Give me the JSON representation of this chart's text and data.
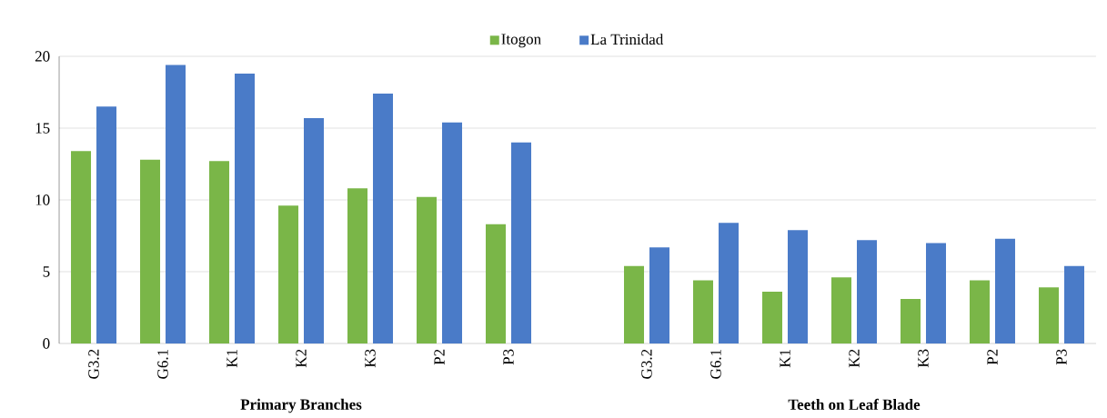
{
  "chart_data": {
    "type": "bar",
    "categories": [
      "G3.2",
      "G6.1",
      "K1",
      "K2",
      "K3",
      "P2",
      "P3",
      null,
      "G3.2",
      "G6.1",
      "K1",
      "K2",
      "K3",
      "P2",
      "P3"
    ],
    "series": [
      {
        "name": "Itogon",
        "color": "#7ab648",
        "values": [
          13.4,
          12.8,
          12.7,
          9.6,
          10.8,
          10.2,
          8.3,
          null,
          5.4,
          4.4,
          3.6,
          4.6,
          3.1,
          4.4,
          3.9
        ]
      },
      {
        "name": "La Trinidad",
        "color": "#4a7bc8",
        "values": [
          16.5,
          19.4,
          18.8,
          15.7,
          17.4,
          15.4,
          14.0,
          null,
          6.7,
          8.4,
          7.9,
          7.2,
          7.0,
          7.3,
          5.4
        ]
      }
    ],
    "ylim": [
      0,
      20
    ],
    "yticks": [
      0,
      5,
      10,
      15,
      20
    ],
    "grid": "y",
    "legend": "top",
    "annotations": [
      "Primary Branches",
      "Teeth on Leaf Blade"
    ]
  }
}
